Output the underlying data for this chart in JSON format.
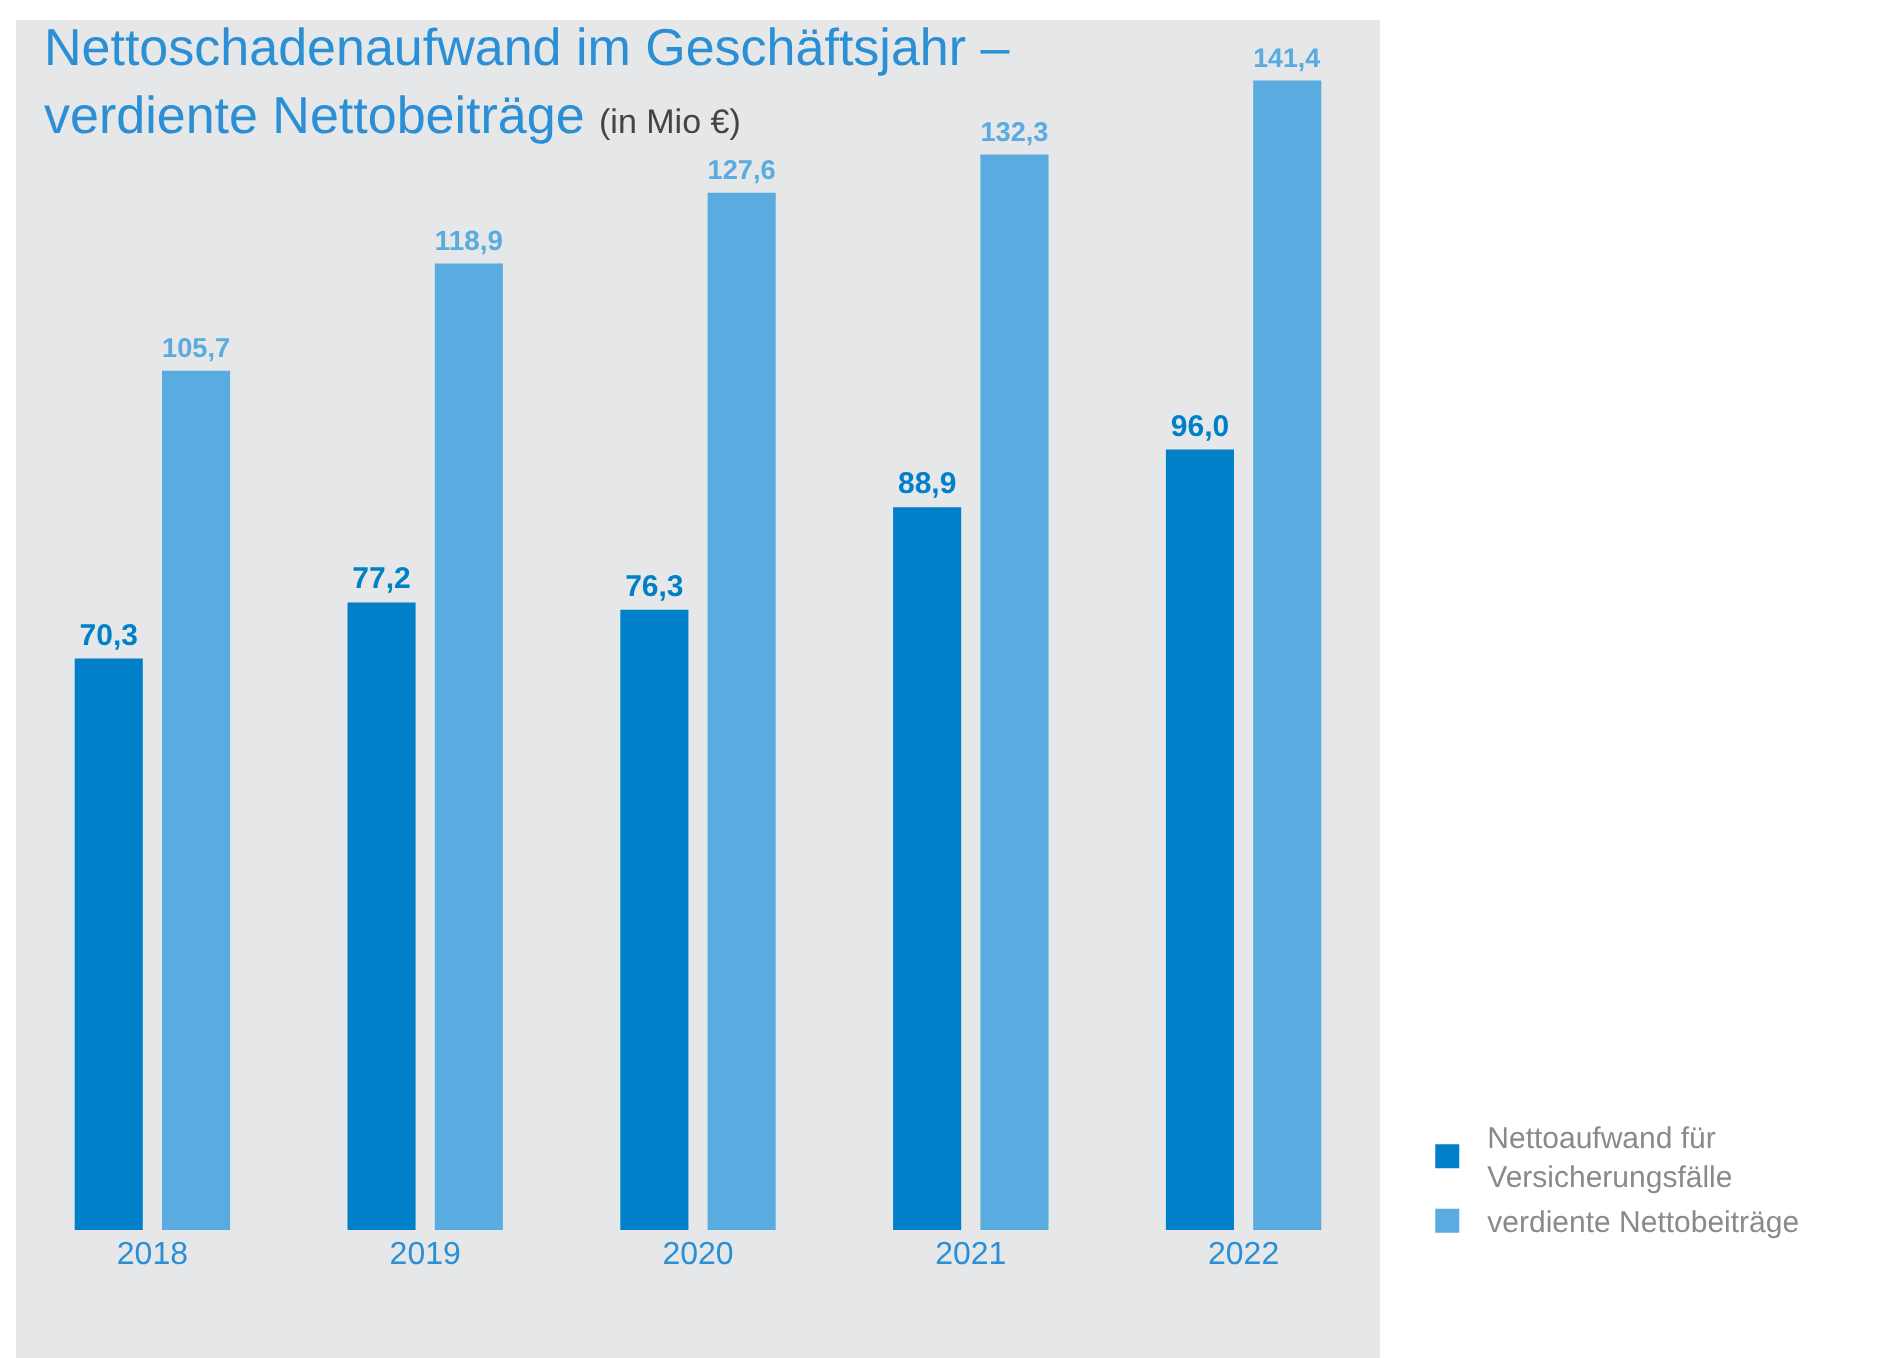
{
  "chart_data": {
    "type": "bar",
    "title": "Nettoschadenaufwand im Geschäftsjahr – verdiente Nettobeiträge",
    "subtitle": "(in Mio €)",
    "categories": [
      "2018",
      "2019",
      "2020",
      "2021",
      "2022"
    ],
    "series": [
      {
        "name": "Nettoaufwand für Versicherungsfälle",
        "color": "#0080c8",
        "values": [
          70.3,
          77.2,
          76.3,
          88.9,
          96.0
        ],
        "value_labels": [
          "70,3",
          "77,2",
          "76,3",
          "88,9",
          "96,0"
        ]
      },
      {
        "name": "verdiente Nettobeiträge",
        "color": "#5aabdf",
        "values": [
          105.7,
          118.9,
          127.6,
          132.3,
          141.4
        ],
        "value_labels": [
          "105,7",
          "118,9",
          "127,6",
          "132,3",
          "141,4"
        ]
      }
    ],
    "legend": "bottom right",
    "grid": false,
    "tick_labels": "x"
  }
}
